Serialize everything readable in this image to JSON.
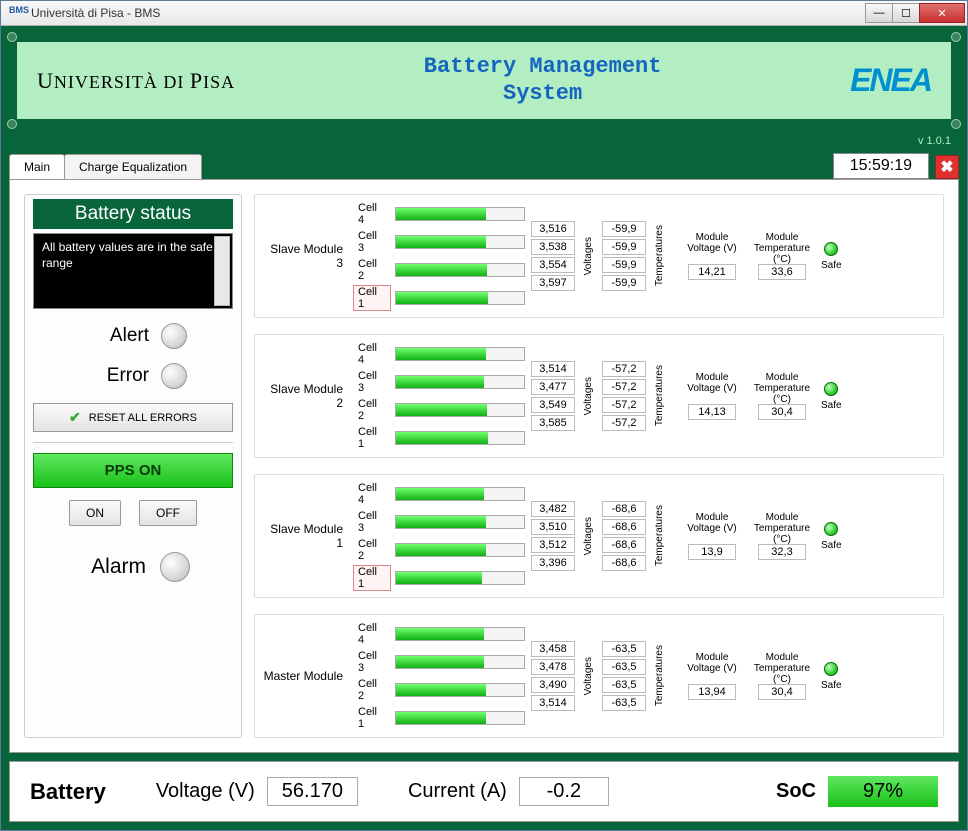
{
  "window": {
    "title": "Università di Pisa - BMS",
    "icon_text": "BMS"
  },
  "header": {
    "university": "UNIVERSITÀ DI PISA",
    "system_line1": "Battery Management",
    "system_line2": "System",
    "enea": "ENEA",
    "version": "v 1.0.1"
  },
  "tabs": {
    "main": "Main",
    "charge_eq": "Charge Equalization"
  },
  "clock": "15:59:19",
  "status": {
    "header": "Battery status",
    "message": "All battery values are in the safe range",
    "alert_label": "Alert",
    "error_label": "Error",
    "reset_label": "RESET ALL ERRORS",
    "pps_label": "PPS ON",
    "on_label": "ON",
    "off_label": "OFF",
    "alarm_label": "Alarm"
  },
  "module_labels": {
    "voltages": "Voltages",
    "temperatures": "Temperatures",
    "mod_voltage": "Module Voltage (V)",
    "mod_temp": "Module Temperature (°C)",
    "safe": "Safe"
  },
  "modules": [
    {
      "name": "Slave Module 3",
      "cells": [
        {
          "label": "Cell 4",
          "voltage": "3,516",
          "temp": "-59,9",
          "fill": 70,
          "hl": false
        },
        {
          "label": "Cell 3",
          "voltage": "3,538",
          "temp": "-59,9",
          "fill": 70,
          "hl": false
        },
        {
          "label": "Cell 2",
          "voltage": "3,554",
          "temp": "-59,9",
          "fill": 71,
          "hl": false
        },
        {
          "label": "Cell 1",
          "voltage": "3,597",
          "temp": "-59,9",
          "fill": 72,
          "hl": true
        }
      ],
      "mod_voltage": "14,21",
      "mod_temp": "33,6"
    },
    {
      "name": "Slave Module 2",
      "cells": [
        {
          "label": "Cell 4",
          "voltage": "3,514",
          "temp": "-57,2",
          "fill": 70,
          "hl": false
        },
        {
          "label": "Cell 3",
          "voltage": "3,477",
          "temp": "-57,2",
          "fill": 69,
          "hl": false
        },
        {
          "label": "Cell 2",
          "voltage": "3,549",
          "temp": "-57,2",
          "fill": 71,
          "hl": false
        },
        {
          "label": "Cell 1",
          "voltage": "3,585",
          "temp": "-57,2",
          "fill": 72,
          "hl": false
        }
      ],
      "mod_voltage": "14,13",
      "mod_temp": "30,4"
    },
    {
      "name": "Slave Module 1",
      "cells": [
        {
          "label": "Cell 4",
          "voltage": "3,482",
          "temp": "-68,6",
          "fill": 69,
          "hl": false
        },
        {
          "label": "Cell 3",
          "voltage": "3,510",
          "temp": "-68,6",
          "fill": 70,
          "hl": false
        },
        {
          "label": "Cell 2",
          "voltage": "3,512",
          "temp": "-68,6",
          "fill": 70,
          "hl": false
        },
        {
          "label": "Cell 1",
          "voltage": "3,396",
          "temp": "-68,6",
          "fill": 67,
          "hl": true
        }
      ],
      "mod_voltage": "13,9",
      "mod_temp": "32,3"
    },
    {
      "name": "Master Module",
      "cells": [
        {
          "label": "Cell 4",
          "voltage": "3,458",
          "temp": "-63,5",
          "fill": 69,
          "hl": false
        },
        {
          "label": "Cell 3",
          "voltage": "3,478",
          "temp": "-63,5",
          "fill": 69,
          "hl": false
        },
        {
          "label": "Cell 2",
          "voltage": "3,490",
          "temp": "-63,5",
          "fill": 70,
          "hl": false
        },
        {
          "label": "Cell 1",
          "voltage": "3,514",
          "temp": "-63,5",
          "fill": 70,
          "hl": false
        }
      ],
      "mod_voltage": "13,94",
      "mod_temp": "30,4"
    }
  ],
  "bottom": {
    "battery_label": "Battery",
    "voltage_label": "Voltage (V)",
    "voltage_value": "56.170",
    "current_label": "Current (A)",
    "current_value": "-0.2",
    "soc_label": "SoC",
    "soc_value": "97%"
  },
  "colors": {
    "frame": "#08643a",
    "header_bg": "#b2eec2",
    "title_blue": "#1565c0",
    "enea_blue": "#0090d0",
    "bar_gradient_top": "#70ff70",
    "bar_gradient_bottom": "#10b010"
  }
}
